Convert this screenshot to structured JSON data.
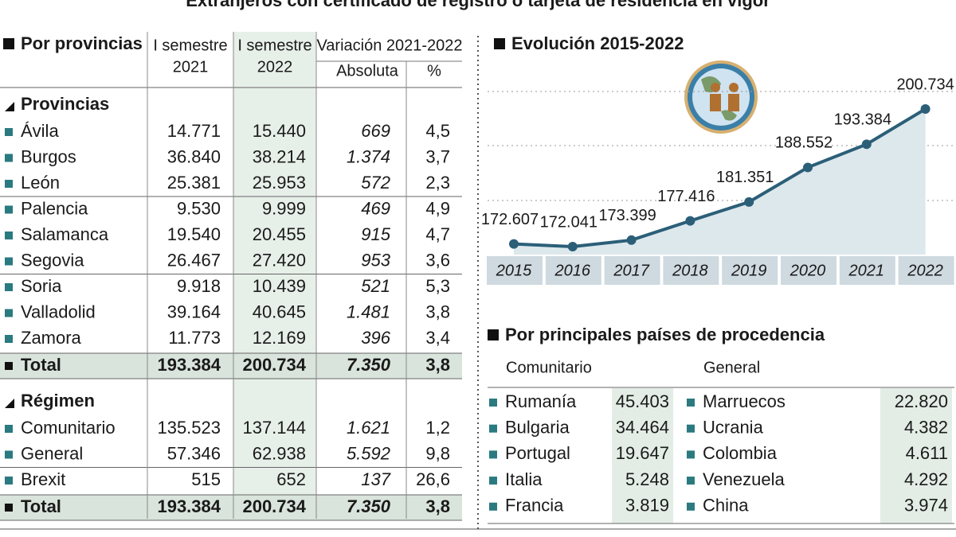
{
  "title": "Extranjeros con certificado de registro o tarjeta de residencia en vigor",
  "provinces_table": {
    "title": "Por provincias",
    "columns": [
      [
        "I semestre",
        "2021"
      ],
      [
        "I semestre",
        "2022"
      ]
    ],
    "variation": "Variación 2021-2022",
    "subcolumns": [
      "Absoluta",
      "%"
    ],
    "sections": [
      {
        "title": "Provincias",
        "rows": [
          [
            "Ávila",
            "14.771",
            "15.440",
            "669",
            "4,5"
          ],
          [
            "Burgos",
            "36.840",
            "38.214",
            "1.374",
            "3,7"
          ],
          [
            "León",
            "25.381",
            "25.953",
            "572",
            "2,3"
          ],
          [
            "Palencia",
            "9.530",
            "9.999",
            "469",
            "4,9"
          ],
          [
            "Salamanca",
            "19.540",
            "20.455",
            "915",
            "4,7"
          ],
          [
            "Segovia",
            "26.467",
            "27.420",
            "953",
            "3,6"
          ],
          [
            "Soria",
            "9.918",
            "10.439",
            "521",
            "5,3"
          ],
          [
            "Valladolid",
            "39.164",
            "40.645",
            "1.481",
            "3,8"
          ],
          [
            "Zamora",
            "11.773",
            "12.169",
            "396",
            "3,4"
          ]
        ],
        "total": [
          "Total",
          "193.384",
          "200.734",
          "7.350",
          "3,8"
        ]
      },
      {
        "title": "Régimen",
        "rows": [
          [
            "Comunitario",
            "135.523",
            "137.144",
            "1.621",
            "1,2"
          ],
          [
            "General",
            "57.346",
            "62.938",
            "5.592",
            "9,8"
          ],
          [
            "Brexit",
            "515",
            "652",
            "137",
            "26,6"
          ]
        ],
        "total": [
          "Total",
          "193.384",
          "200.734",
          "7.350",
          "3,8"
        ]
      }
    ]
  },
  "chart_data": {
    "type": "line",
    "title": "Evolución 2015-2022",
    "categories": [
      "2015",
      "2016",
      "2017",
      "2018",
      "2019",
      "2020",
      "2021",
      "2022"
    ],
    "values": [
      172607,
      172041,
      173399,
      177416,
      181351,
      188552,
      193384,
      200734
    ],
    "value_labels": [
      "172.607",
      "172.041",
      "173.399",
      "177.416",
      "181.351",
      "188.552",
      "193.384",
      "200.734"
    ],
    "color": "#2b5f78"
  },
  "countries": {
    "title": "Por principales países de procedencia",
    "groups": [
      {
        "name": "Comunitario",
        "rows": [
          [
            "Rumanía",
            "45.403"
          ],
          [
            "Bulgaria",
            "34.464"
          ],
          [
            "Portugal",
            "19.647"
          ],
          [
            "Italia",
            "5.248"
          ],
          [
            "Francia",
            "3.819"
          ]
        ]
      },
      {
        "name": "General",
        "rows": [
          [
            "Marruecos",
            "22.820"
          ],
          [
            "Ucrania",
            "4.382"
          ],
          [
            "Colombia",
            "4.611"
          ],
          [
            "Venezuela",
            "4.292"
          ],
          [
            "China",
            "3.974"
          ]
        ]
      }
    ]
  }
}
